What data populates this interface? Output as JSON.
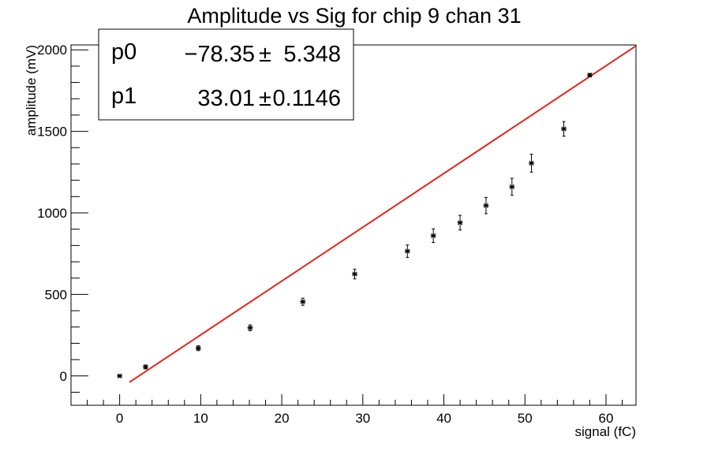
{
  "chart_data": {
    "type": "scatter",
    "title": "Amplitude vs Sig for chip 9 chan 31",
    "xlabel": "signal (fC)",
    "ylabel": "amplitude (mV)",
    "xlim": [
      -6,
      63.7
    ],
    "ylim": [
      -180,
      2030
    ],
    "x_ticks": [
      0,
      10,
      20,
      30,
      40,
      50,
      60
    ],
    "y_ticks": [
      0,
      500,
      1000,
      1500,
      2000
    ],
    "grid": false,
    "points": [
      {
        "x": 0.0,
        "y": 0,
        "err": 8
      },
      {
        "x": 3.2,
        "y": 55,
        "err": 12
      },
      {
        "x": 9.7,
        "y": 170,
        "err": 15
      },
      {
        "x": 16.1,
        "y": 295,
        "err": 18
      },
      {
        "x": 22.6,
        "y": 455,
        "err": 22
      },
      {
        "x": 29.0,
        "y": 625,
        "err": 30
      },
      {
        "x": 35.5,
        "y": 765,
        "err": 38
      },
      {
        "x": 38.7,
        "y": 860,
        "err": 42
      },
      {
        "x": 42.0,
        "y": 940,
        "err": 45
      },
      {
        "x": 45.2,
        "y": 1045,
        "err": 50
      },
      {
        "x": 48.4,
        "y": 1160,
        "err": 52
      },
      {
        "x": 50.8,
        "y": 1305,
        "err": 55
      },
      {
        "x": 54.8,
        "y": 1515,
        "err": 45
      },
      {
        "x": 58.0,
        "y": 1845,
        "err": 10
      }
    ],
    "fit": {
      "p0": -78.35,
      "p1": 33.01,
      "x_range": [
        1.2,
        63.7
      ],
      "color": "#e8231a"
    },
    "stats": {
      "rows": [
        {
          "name": "p0",
          "value": "−78.35",
          "pm": "±",
          "error": "5.348"
        },
        {
          "name": "p1",
          "value": "33.01",
          "pm": "±",
          "error": "0.1146"
        }
      ]
    }
  }
}
